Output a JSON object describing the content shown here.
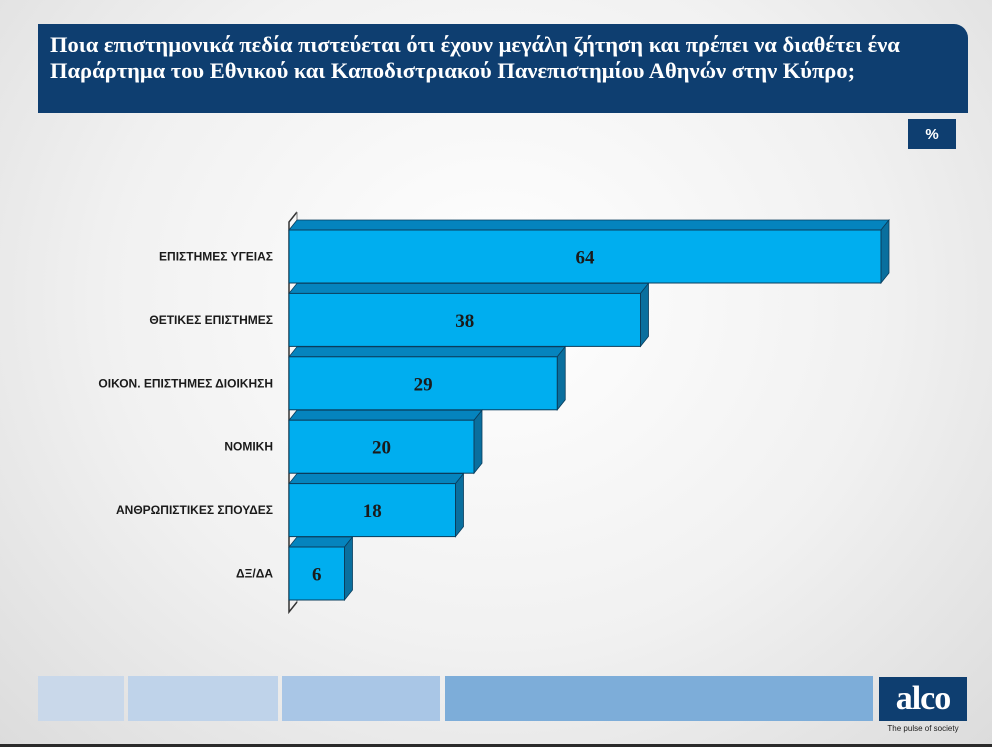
{
  "header": {
    "title": "Ποια επιστημονικά πεδία πιστεύεται ότι έχουν μεγάλη ζήτηση και πρέπει να διαθέτει ένα Παράρτημα του Εθνικού και Καποδιστριακού Πανεπιστημίου Αθηνών στην Κύπρο;",
    "unit": "%"
  },
  "chart_data": {
    "type": "bar",
    "orientation": "horizontal",
    "categories": [
      "ΕΠΙΣΤΗΜΕΣ ΥΓΕΙΑΣ",
      "ΘΕΤΙΚΕΣ ΕΠΙΣΤΗΜΕΣ",
      "ΟΙΚΟΝ. ΕΠΙΣΤΗΜΕΣ ΔΙΟΙΚΗΣΗ",
      "ΝΟΜΙΚΗ",
      "ΑΝΘΡΩΠΙΣΤΙΚΕΣ ΣΠΟΥΔΕΣ",
      "ΔΞ/ΔΑ"
    ],
    "values": [
      64,
      38,
      29,
      20,
      18,
      6
    ],
    "title": "",
    "xlabel": "",
    "ylabel": "",
    "xlim": [
      0,
      64
    ],
    "grid": false,
    "legend": "none",
    "style": "3d",
    "colors": {
      "bar_front": "#00aeef",
      "bar_side": "#0a6f9e",
      "bar_top": "#0584be",
      "axis": "#333333"
    }
  },
  "brand": {
    "logo_text": "alco",
    "tagline": "The pulse of society",
    "color": "#0e3e70"
  },
  "footer": {
    "stripe_colors": [
      "#c9d8ea",
      "#bfd3ea",
      "#a9c6e6",
      "#7dadd9"
    ]
  }
}
